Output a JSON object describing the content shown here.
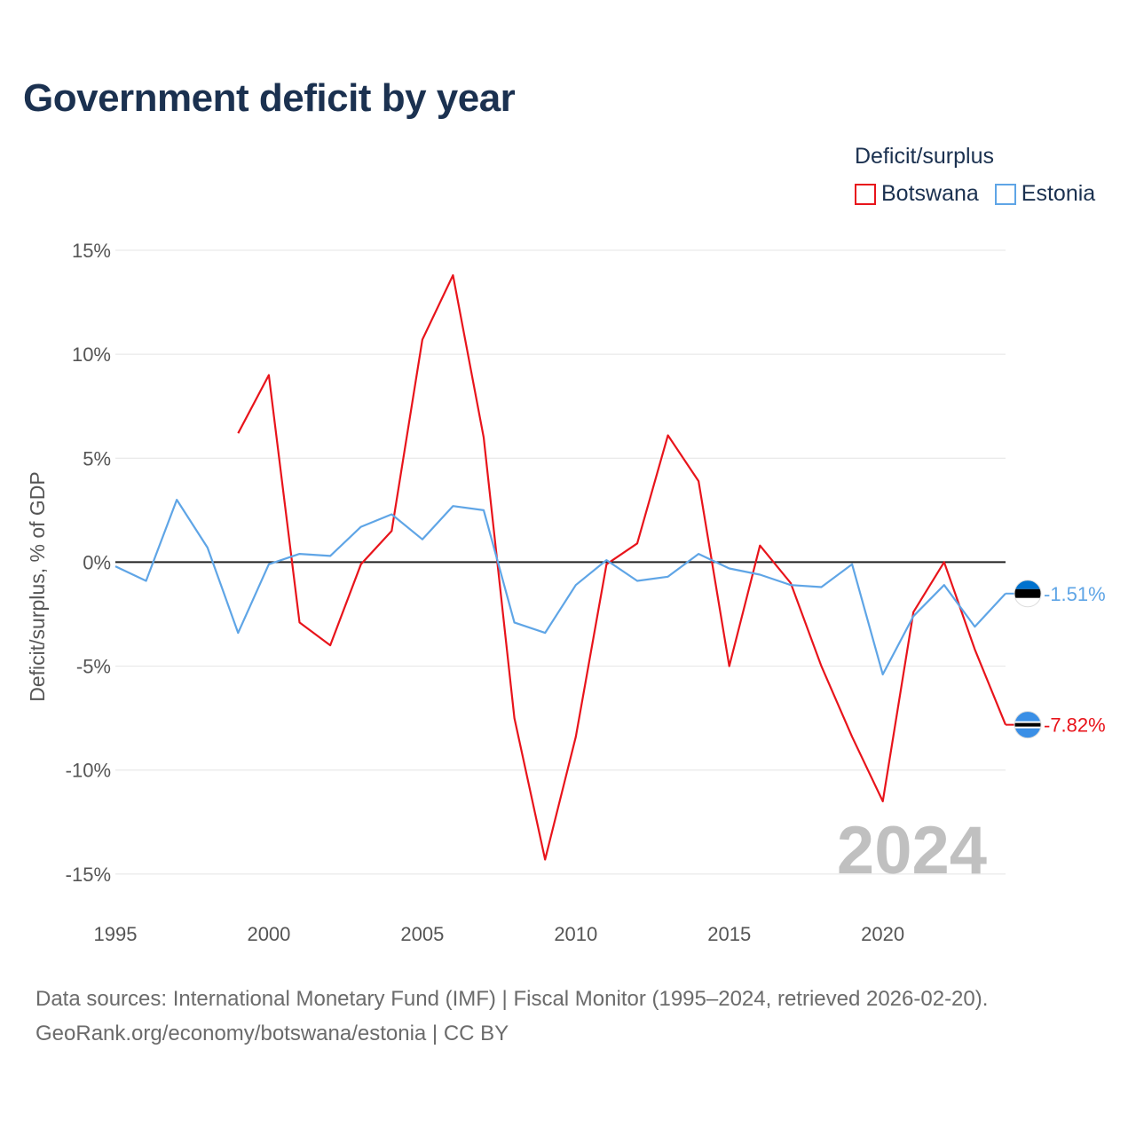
{
  "chart_data": {
    "type": "line",
    "title": "Government deficit by year",
    "ylabel": "Deficit/surplus, % of GDP",
    "xlabel": "",
    "x": [
      1995,
      1996,
      1997,
      1998,
      1999,
      2000,
      2001,
      2002,
      2003,
      2004,
      2005,
      2006,
      2007,
      2008,
      2009,
      2010,
      2011,
      2012,
      2013,
      2014,
      2015,
      2016,
      2017,
      2018,
      2019,
      2020,
      2021,
      2022,
      2023,
      2024
    ],
    "xlim": [
      1995,
      2024
    ],
    "ylim": [
      -16.5,
      15
    ],
    "yticks": [
      15,
      10,
      5,
      0,
      -5,
      -10,
      -15
    ],
    "ytick_labels": [
      "15%",
      "10%",
      "5%",
      "0%",
      "-5%",
      "-10%",
      "-15%"
    ],
    "xticks": [
      1995,
      2000,
      2005,
      2010,
      2015,
      2020
    ],
    "xtick_labels": [
      "1995",
      "2000",
      "2005",
      "2010",
      "2015",
      "2020"
    ],
    "legend_title": "Deficit/surplus",
    "legend_position": "top-right",
    "series": [
      {
        "name": "Botswana",
        "color": "#e8141b",
        "values": [
          null,
          null,
          null,
          null,
          6.2,
          9.0,
          -2.9,
          -4.0,
          -0.1,
          1.5,
          10.7,
          13.8,
          6.0,
          -7.5,
          -14.3,
          -8.4,
          -0.1,
          0.9,
          6.1,
          3.9,
          -5.0,
          0.8,
          -1.0,
          -5.0,
          -8.4,
          -11.5,
          -2.4,
          0.0,
          -4.2,
          -7.82
        ],
        "end_label": "-7.82%"
      },
      {
        "name": "Estonia",
        "color": "#5fa5e6",
        "values": [
          -0.2,
          -0.9,
          3.0,
          0.7,
          -3.4,
          -0.1,
          0.4,
          0.3,
          1.7,
          2.3,
          1.1,
          2.7,
          2.5,
          -2.9,
          -3.4,
          -1.1,
          0.1,
          -0.9,
          -0.7,
          0.4,
          -0.3,
          -0.6,
          -1.1,
          -1.2,
          -0.1,
          -5.4,
          -2.6,
          -1.1,
          -3.1,
          -1.51
        ],
        "end_label": "-1.51%"
      }
    ],
    "year_overlay": "2024"
  },
  "footer": {
    "line1": "Data sources: International Monetary Fund (IMF) | Fiscal Monitor (1995–2024, retrieved 2026-02-20).",
    "line2": "GeoRank.org/economy/botswana/estonia | CC BY"
  }
}
